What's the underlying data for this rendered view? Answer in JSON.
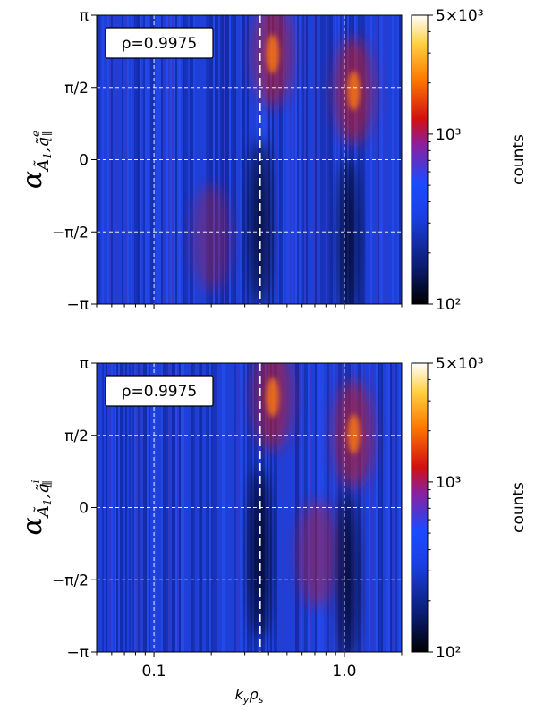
{
  "chart_data": [
    {
      "type": "heatmap",
      "panel": "top",
      "ylabel": "α_{Ã1, q̃∥^e}",
      "xlabel": "",
      "x_scale": "log",
      "xlim": [
        0.05,
        2.0
      ],
      "ylim": [
        -3.1416,
        3.1416
      ],
      "xticks": [
        {
          "value": 0.1,
          "label": "0.1"
        },
        {
          "value": 1.0,
          "label": "1.0"
        }
      ],
      "yticks": [
        {
          "value": -3.1416,
          "label": "−π"
        },
        {
          "value": -1.5708,
          "label": "−π/2"
        },
        {
          "value": 0,
          "label": "0"
        },
        {
          "value": 1.5708,
          "label": "π/2"
        },
        {
          "value": 3.1416,
          "label": "π"
        }
      ],
      "grid": true,
      "vline": {
        "x": 0.36,
        "style": "dashed",
        "color": "#ffffff"
      },
      "annotation": "ρ=0.9975",
      "hotspots": [
        {
          "x": 0.42,
          "y": 2.3,
          "intensity": 0.75
        },
        {
          "x": 1.12,
          "y": 1.5,
          "intensity": 0.8
        },
        {
          "x": 0.2,
          "y": -1.7,
          "intensity": 0.35
        }
      ],
      "coldspots": [
        {
          "x": 0.36,
          "y": -1.4,
          "intensity": 1.0
        },
        {
          "x": 1.05,
          "y": -1.8,
          "intensity": 0.9
        }
      ],
      "colorbar": {
        "label": "counts",
        "scale": "log",
        "range": [
          100,
          5000
        ],
        "ticks": [
          {
            "value": 5000,
            "label": "5×10³"
          },
          {
            "value": 1000,
            "label": "10³"
          },
          {
            "value": 100,
            "label": "10²"
          }
        ]
      }
    },
    {
      "type": "heatmap",
      "panel": "bottom",
      "ylabel": "α_{Ã1, q̃∥^i}",
      "xlabel": "k_y ρ_s",
      "x_scale": "log",
      "xlim": [
        0.05,
        2.0
      ],
      "ylim": [
        -3.1416,
        3.1416
      ],
      "xticks": [
        {
          "value": 0.1,
          "label": "0.1"
        },
        {
          "value": 1.0,
          "label": "1.0"
        }
      ],
      "yticks": [
        {
          "value": -3.1416,
          "label": "−π"
        },
        {
          "value": -1.5708,
          "label": "−π/2"
        },
        {
          "value": 0,
          "label": "0"
        },
        {
          "value": 1.5708,
          "label": "π/2"
        },
        {
          "value": 3.1416,
          "label": "π"
        }
      ],
      "grid": true,
      "vline": {
        "x": 0.36,
        "style": "dashed",
        "color": "#ffffff"
      },
      "annotation": "ρ=0.9975",
      "hotspots": [
        {
          "x": 0.42,
          "y": 2.4,
          "intensity": 0.75
        },
        {
          "x": 1.12,
          "y": 1.6,
          "intensity": 0.75
        },
        {
          "x": 0.72,
          "y": -1.0,
          "intensity": 0.5
        }
      ],
      "coldspots": [
        {
          "x": 0.36,
          "y": -1.0,
          "intensity": 1.0
        },
        {
          "x": 1.05,
          "y": -1.5,
          "intensity": 0.9
        }
      ],
      "colorbar": {
        "label": "counts",
        "scale": "log",
        "range": [
          100,
          5000
        ],
        "ticks": [
          {
            "value": 5000,
            "label": "5×10³"
          },
          {
            "value": 1000,
            "label": "10³"
          },
          {
            "value": 100,
            "label": "10²"
          }
        ]
      }
    }
  ],
  "colors": {
    "cmap": [
      "#000000",
      "#0a1a6a",
      "#1e3cc8",
      "#1a4bff",
      "#7a2aa0",
      "#c81a1a",
      "#ff7a00",
      "#ffd040",
      "#ffffff"
    ],
    "grid": "#ffffff"
  }
}
